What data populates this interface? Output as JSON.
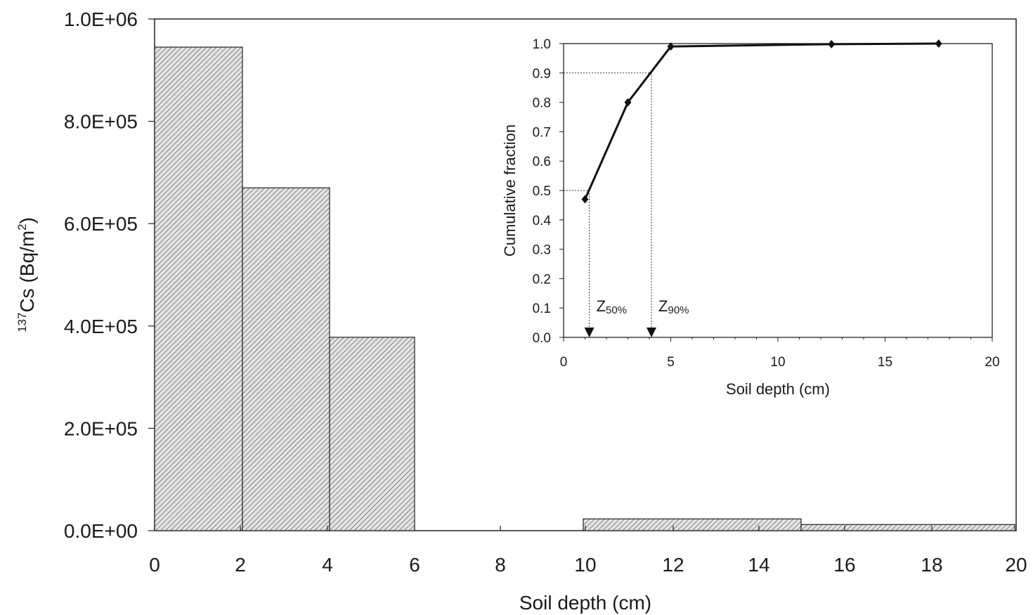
{
  "chart_data": [
    {
      "type": "bar",
      "title": "",
      "xlabel": "Soil depth (cm)",
      "ylabel_sup": "137",
      "ylabel_main": "Cs (Bq/m",
      "ylabel_sup2": "2",
      "ylabel_end": ")",
      "x_tick_labels": [
        "0",
        "2",
        "4",
        "6",
        "8",
        "10",
        "12",
        "14",
        "16",
        "18",
        "20"
      ],
      "y_tick_labels": [
        "0.0E+00",
        "2.0E+05",
        "4.0E+05",
        "6.0E+05",
        "8.0E+05",
        "1.0E+06"
      ],
      "ylim": [
        0,
        1000000
      ],
      "bars": [
        {
          "depth_from": 0,
          "depth_to": 2,
          "value": 945000
        },
        {
          "depth_from": 2,
          "depth_to": 4,
          "value": 670000
        },
        {
          "depth_from": 4,
          "depth_to": 6,
          "value": 378000
        },
        {
          "depth_from": 10,
          "depth_to": 15,
          "value": 23000
        },
        {
          "depth_from": 15,
          "depth_to": 20,
          "value": 12000
        }
      ],
      "fill": "hatched grey",
      "grid": false
    },
    {
      "type": "line",
      "title": "",
      "xlabel": "Soil depth (cm)",
      "ylabel": "Cumulative fraction",
      "x_tick_labels": [
        "0",
        "5",
        "10",
        "15",
        "20"
      ],
      "y_tick_labels": [
        "0.0",
        "0.1",
        "0.2",
        "0.3",
        "0.4",
        "0.5",
        "0.6",
        "0.7",
        "0.8",
        "0.9",
        "1.0"
      ],
      "xlim": [
        0,
        20
      ],
      "ylim": [
        0,
        1
      ],
      "series": [
        {
          "x": [
            1,
            3,
            5,
            12.5,
            17.5
          ],
          "y": [
            0.47,
            0.8,
            0.99,
            0.998,
            1.0
          ]
        }
      ],
      "annotations": [
        {
          "label": "Z",
          "sub": "50%",
          "x": 1.2,
          "y": 0.5
        },
        {
          "label": "Z",
          "sub": "90%",
          "x": 4.1,
          "y": 0.9
        }
      ],
      "grid": false
    }
  ]
}
